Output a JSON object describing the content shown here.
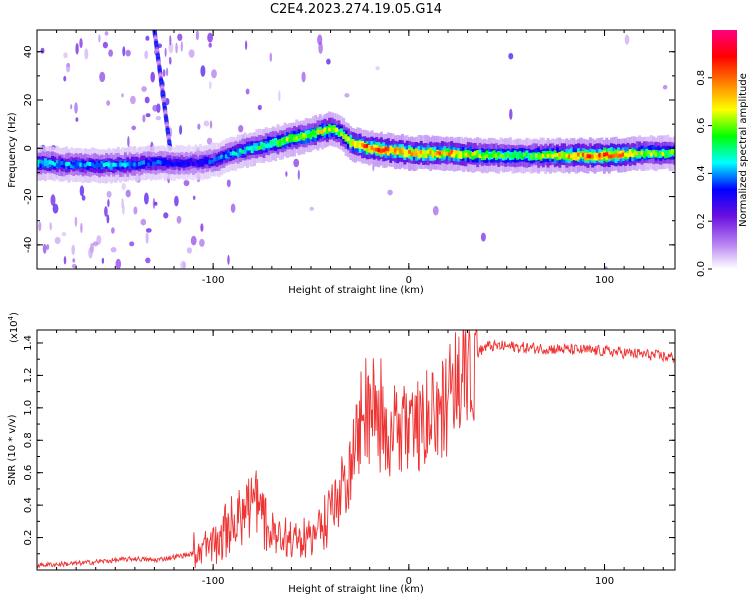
{
  "page": {
    "title": "C2E4.2023.274.19.05.G14"
  },
  "chart_data": [
    {
      "type": "heatmap",
      "id": "spectrogram",
      "xlabel": "Height of straight line (km)",
      "ylabel": "Frequency (Hz)",
      "xlim": [
        -190,
        136
      ],
      "ylim": [
        -50,
        49
      ],
      "xticks": [
        -100,
        0,
        100
      ],
      "yticks": [
        -40,
        -20,
        0,
        20,
        40
      ],
      "colorbar": {
        "label": "Normalized spectral amplitude",
        "range": [
          0,
          1
        ],
        "ticks": [
          "0.0",
          "0.2",
          "0.4",
          "0.6",
          "0.8"
        ],
        "colormap": [
          "#ffffff",
          "#b37bf0",
          "#6a0fe0",
          "#0000ff",
          "#00ffff",
          "#00ff00",
          "#ffff00",
          "#ff8000",
          "#ff0000",
          "#ff0080"
        ]
      },
      "ridge": {
        "x": [
          -190,
          -170,
          -150,
          -130,
          -110,
          -100,
          -90,
          -80,
          -70,
          -60,
          -50,
          -40,
          -35,
          -30,
          -20,
          -10,
          0,
          20,
          40,
          60,
          80,
          100,
          120,
          136
        ],
        "y": [
          -6,
          -7,
          -7,
          -6,
          -6,
          -5,
          -2,
          0,
          2,
          4,
          6,
          8,
          6,
          2,
          0,
          -1,
          -2,
          -2,
          -3,
          -3,
          -3,
          -3,
          -2,
          -2
        ],
        "peak_amplitude": [
          0.45,
          0.4,
          0.42,
          0.35,
          0.3,
          0.35,
          0.42,
          0.5,
          0.55,
          0.6,
          0.62,
          0.65,
          0.6,
          0.7,
          0.8,
          0.78,
          0.75,
          0.72,
          0.6,
          0.55,
          0.7,
          0.85,
          0.6,
          0.55
        ]
      },
      "diagonal_streak": {
        "x": [
          -130,
          -122
        ],
        "y": [
          49,
          0
        ]
      }
    },
    {
      "type": "line",
      "id": "snr",
      "xlabel": "Height of straight line (km)",
      "ylabel": "SNR (10 * v/v)",
      "multiplier_label": "(x10",
      "multiplier_exp": "4",
      "multiplier_close": ")",
      "xlim": [
        -190,
        136
      ],
      "ylim": [
        0,
        1.48
      ],
      "xticks": [
        -100,
        0,
        100
      ],
      "yticks": [
        0.2,
        0.4,
        0.6,
        0.8,
        1.0,
        1.2,
        1.4
      ],
      "color": "#ee3333",
      "series": [
        {
          "x": [
            -190,
            -170,
            -150,
            -140,
            -130,
            -120,
            -110,
            -100,
            -95,
            -90,
            -85,
            -80,
            -75,
            -70,
            -65,
            -60,
            -55,
            -50,
            -45,
            -40,
            -35,
            -30,
            -28,
            -25,
            -22,
            -20,
            -15,
            -10,
            -5,
            0,
            5,
            10,
            15,
            20,
            25,
            30,
            40,
            50,
            60,
            80,
            100,
            120,
            136
          ],
          "y": [
            0.03,
            0.04,
            0.06,
            0.07,
            0.06,
            0.08,
            0.1,
            0.14,
            0.2,
            0.25,
            0.35,
            0.4,
            0.3,
            0.22,
            0.2,
            0.18,
            0.16,
            0.18,
            0.25,
            0.35,
            0.45,
            0.6,
            0.75,
            0.85,
            0.9,
            0.95,
            0.9,
            0.85,
            0.9,
            0.8,
            0.85,
            0.9,
            0.95,
            1.05,
            1.15,
            1.3,
            1.38,
            1.38,
            1.37,
            1.36,
            1.35,
            1.33,
            1.31
          ]
        }
      ]
    }
  ]
}
